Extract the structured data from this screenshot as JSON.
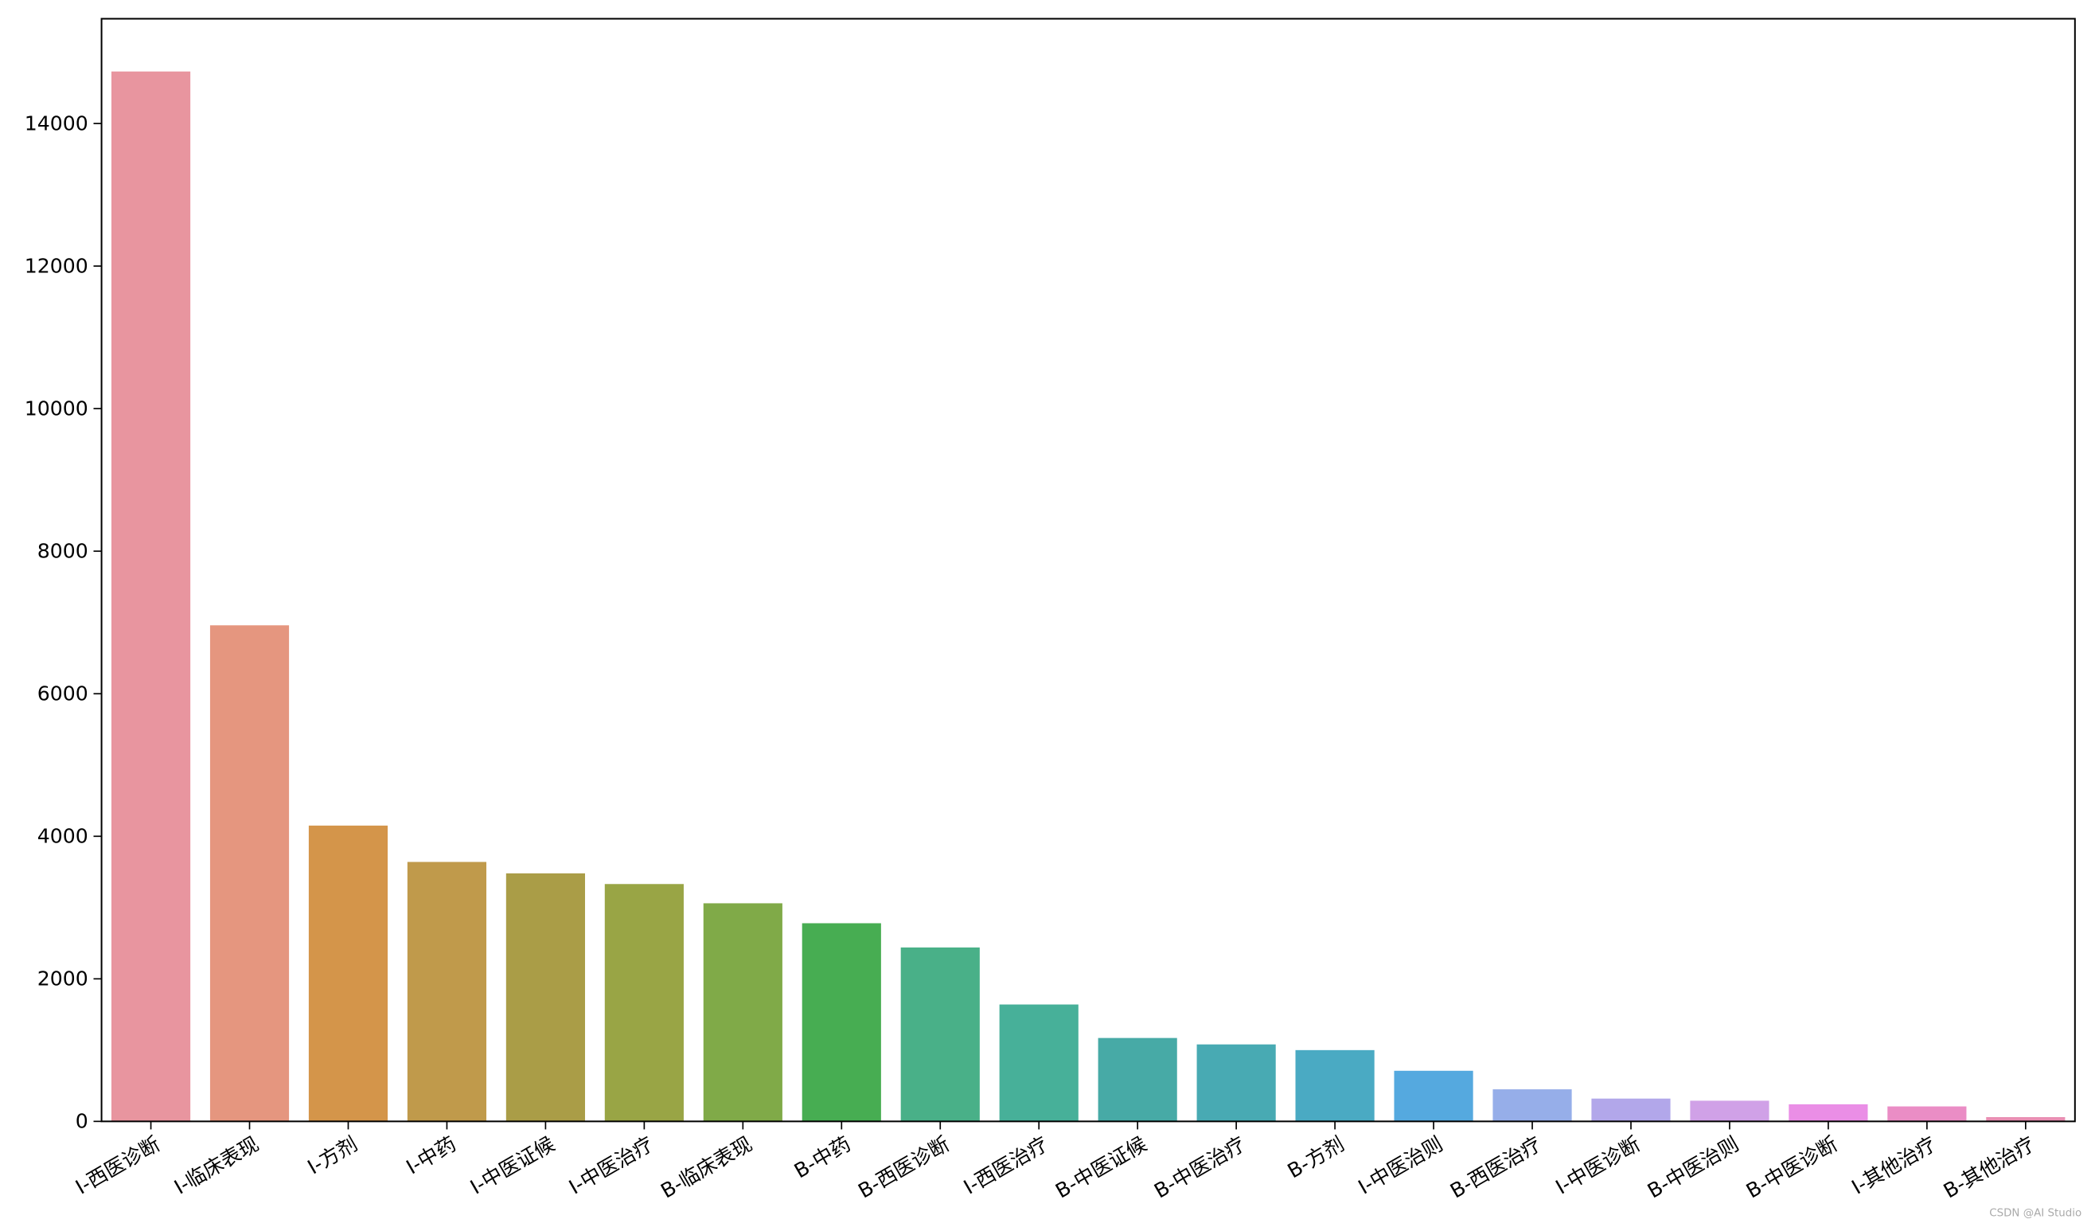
{
  "chart_data": {
    "type": "bar",
    "categories": [
      "I-西医诊断",
      "I-临床表现",
      "I-方剂",
      "I-中药",
      "I-中医证候",
      "I-中医治疗",
      "B-临床表现",
      "B-中药",
      "B-西医诊断",
      "I-西医治疗",
      "B-中医证候",
      "B-中医治疗",
      "B-方剂",
      "I-中医治则",
      "B-西医治疗",
      "I-中医诊断",
      "B-中医治则",
      "B-中医诊断",
      "I-其他治疗",
      "B-其他治疗"
    ],
    "values": [
      14730,
      6960,
      4150,
      3640,
      3480,
      3330,
      3060,
      2780,
      2440,
      1640,
      1170,
      1080,
      1000,
      710,
      450,
      320,
      290,
      240,
      210,
      60
    ],
    "colors": [
      "#e8959f",
      "#e5967f",
      "#d4954a",
      "#c09a4b",
      "#aa9d47",
      "#99a545",
      "#80aa48",
      "#47ad52",
      "#49b088",
      "#47b099",
      "#47aaa6",
      "#48aab3",
      "#4aaac3",
      "#55a9df",
      "#96aee9",
      "#b2a7ea",
      "#d0a1e7",
      "#ea8ee6",
      "#ea8dc5",
      "#e98fb3"
    ],
    "ylim": [
      0,
      15470
    ],
    "yticks": [
      0,
      2000,
      4000,
      6000,
      8000,
      10000,
      12000,
      14000
    ],
    "watermark": "CSDN @AI Studio"
  }
}
